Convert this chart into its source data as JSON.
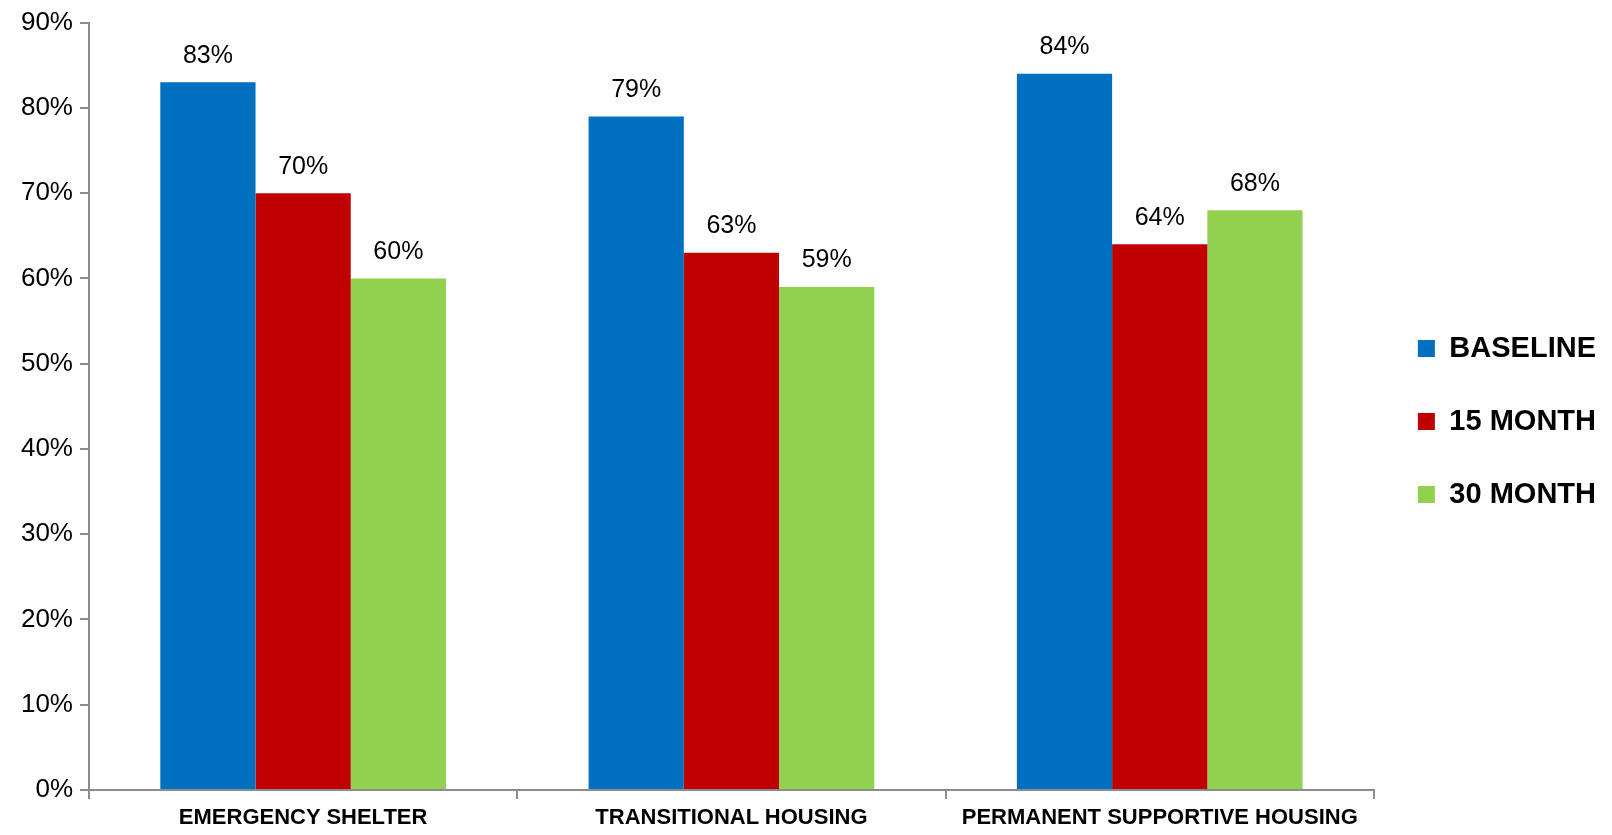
{
  "chart_data": {
    "type": "bar",
    "categories": [
      "EMERGENCY SHELTER",
      "TRANSITIONAL HOUSING",
      "PERMANENT SUPPORTIVE HOUSING"
    ],
    "series": [
      {
        "name": "BASELINE",
        "color": "#0070c0",
        "values": [
          83,
          79,
          84
        ],
        "value_labels": [
          "83%",
          "79%",
          "84%"
        ]
      },
      {
        "name": "15 MONTH",
        "color": "#c00000",
        "values": [
          70,
          63,
          64
        ],
        "value_labels": [
          "70%",
          "63%",
          "64%"
        ]
      },
      {
        "name": "30 MONTH",
        "color": "#92d050",
        "values": [
          60,
          59,
          68
        ],
        "value_labels": [
          "60%",
          "59%",
          "68%"
        ]
      }
    ],
    "ylim": [
      0,
      90
    ],
    "yticks": [
      {
        "value": 0,
        "label": "0%"
      },
      {
        "value": 10,
        "label": "10%"
      },
      {
        "value": 20,
        "label": "20%"
      },
      {
        "value": 30,
        "label": "30%"
      },
      {
        "value": 40,
        "label": "40%"
      },
      {
        "value": 50,
        "label": "50%"
      },
      {
        "value": 60,
        "label": "60%"
      },
      {
        "value": 70,
        "label": "70%"
      },
      {
        "value": 80,
        "label": "80%"
      },
      {
        "value": 90,
        "label": "90%"
      }
    ],
    "grid": false,
    "legend": "right"
  }
}
